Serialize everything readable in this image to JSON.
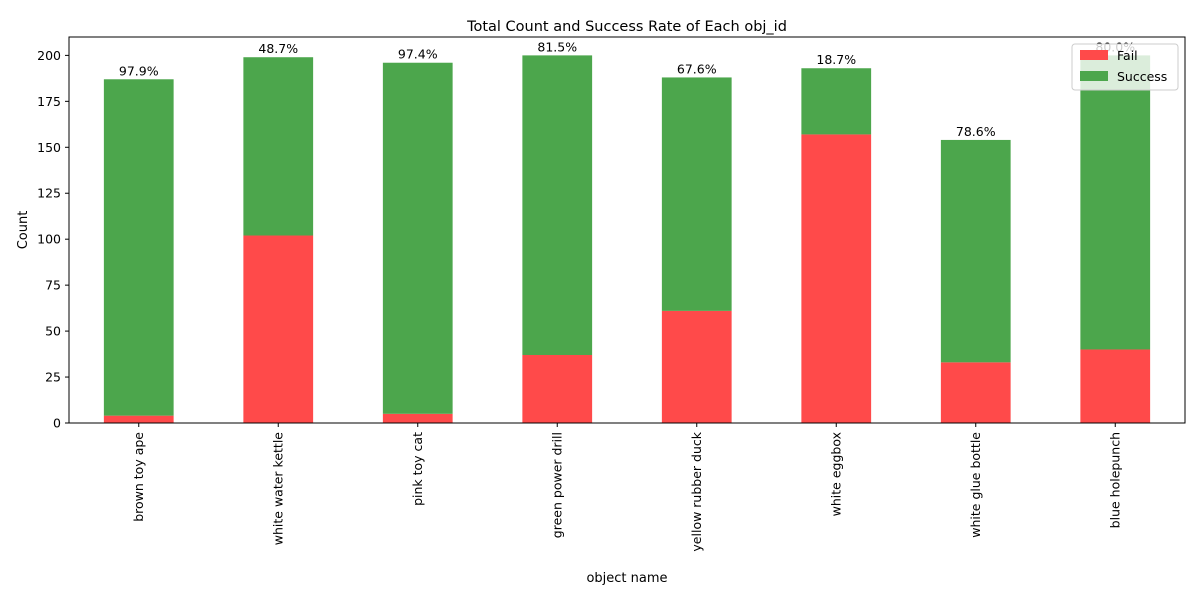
{
  "chart_data": {
    "type": "bar",
    "stacked": true,
    "title": "Total Count and Success Rate of Each obj_id",
    "xlabel": "object name",
    "ylabel": "Count",
    "ylim": [
      0,
      210
    ],
    "yticks": [
      0,
      25,
      50,
      75,
      100,
      125,
      150,
      175,
      200
    ],
    "grid": false,
    "legend_position": "top-right",
    "categories": [
      "brown toy ape",
      "white water kettle",
      "pink toy cat",
      "green power drill",
      "yellow rubber duck",
      "white eggbox",
      "white glue bottle",
      "blue holepunch"
    ],
    "series": [
      {
        "name": "Fail",
        "color": "#ff4a4a",
        "values": [
          4,
          102,
          5,
          37,
          61,
          157,
          33,
          40
        ]
      },
      {
        "name": "Success",
        "color": "#4ca64c",
        "values": [
          183,
          97,
          191,
          163,
          127,
          36,
          121,
          160
        ]
      }
    ],
    "data_labels": [
      "97.9%",
      "48.7%",
      "97.4%",
      "81.5%",
      "67.6%",
      "18.7%",
      "78.6%",
      "80.0%"
    ]
  }
}
